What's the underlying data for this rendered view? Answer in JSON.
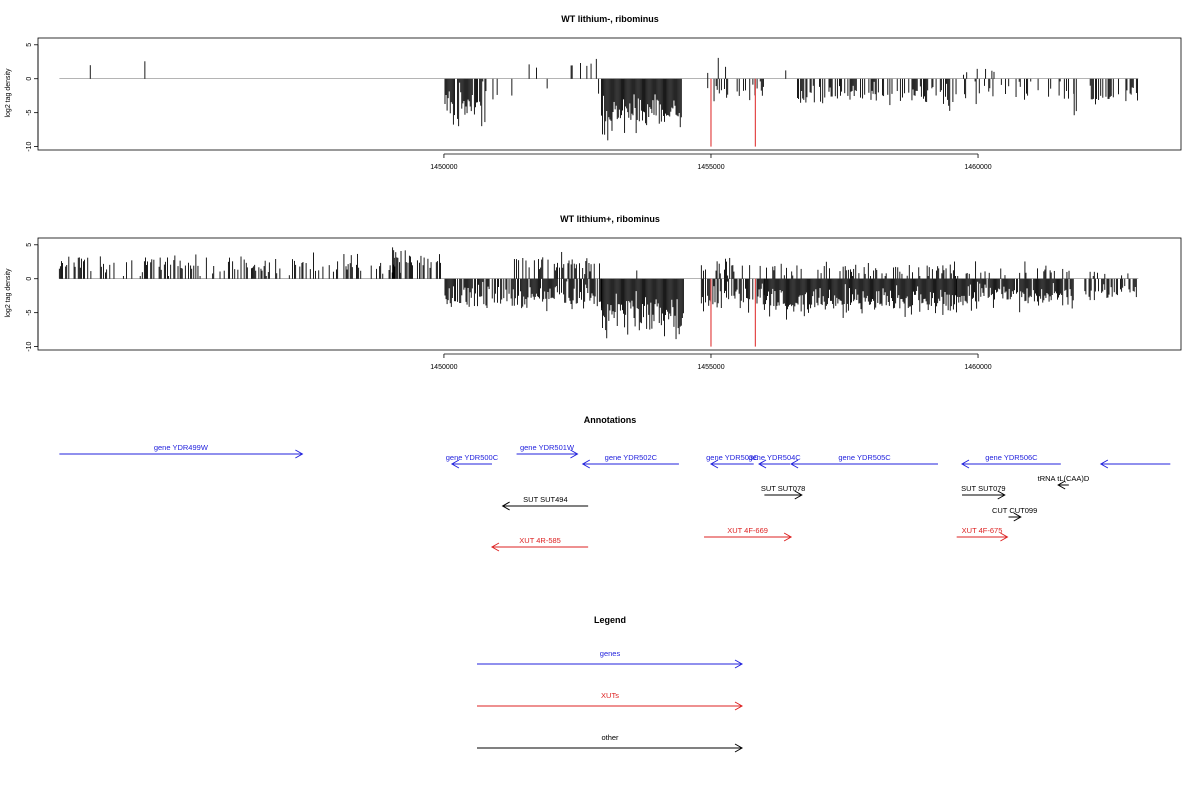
{
  "chart_data": [
    {
      "type": "bar",
      "title": "WT lithium-, ribominus",
      "ylabel": "log2 tag density",
      "xlabel": "",
      "xlim": [
        1442400,
        1463800
      ],
      "ylim": [
        -10.5,
        6
      ],
      "x_ticks": [
        {
          "value": 1450000,
          "label": "1450000"
        },
        {
          "value": 1455000,
          "label": "1455000"
        },
        {
          "value": 1460000,
          "label": "1460000"
        }
      ],
      "y_ticks": [
        {
          "value": -10,
          "label": "-10"
        },
        {
          "value": -5,
          "label": "-5"
        },
        {
          "value": 0,
          "label": "0"
        },
        {
          "value": 5,
          "label": "5"
        }
      ],
      "baseline": {
        "from": 1442800,
        "to": 1463000
      },
      "seed": 7,
      "regions": [
        {
          "from": 1443300,
          "to": 1444800,
          "sign": 1,
          "mean": 2.4,
          "spread": 1.1,
          "density": 0.05
        },
        {
          "from": 1450020,
          "to": 1450800,
          "sign": -1,
          "mean": 3.8,
          "spread": 2.2,
          "density": 0.9
        },
        {
          "from": 1450800,
          "to": 1451300,
          "sign": -1,
          "mean": 2.0,
          "spread": 1.0,
          "density": 0.25
        },
        {
          "from": 1451300,
          "to": 1452900,
          "sign": 1,
          "mean": 1.9,
          "spread": 0.9,
          "density": 0.06
        },
        {
          "from": 1451500,
          "to": 1452900,
          "sign": -1,
          "mean": 1.5,
          "spread": 0.6,
          "density": 0.04
        },
        {
          "from": 1452950,
          "to": 1454450,
          "sign": -1,
          "mean": 5.2,
          "spread": 1.8,
          "density": 1.0
        },
        {
          "from": 1454900,
          "to": 1455700,
          "sign": 1,
          "mean": 1.7,
          "spread": 1.0,
          "density": 0.12
        },
        {
          "from": 1454900,
          "to": 1456000,
          "sign": -1,
          "mean": 2.2,
          "spread": 1.1,
          "density": 0.35
        },
        {
          "from": 1456400,
          "to": 1456700,
          "sign": 1,
          "mean": 1.0,
          "spread": 0.5,
          "density": 0.06
        },
        {
          "from": 1456600,
          "to": 1459650,
          "sign": -1,
          "mean": 2.5,
          "spread": 1.1,
          "density": 0.55
        },
        {
          "from": 1459650,
          "to": 1460350,
          "sign": 1,
          "mean": 1.5,
          "spread": 0.8,
          "density": 0.12
        },
        {
          "from": 1459650,
          "to": 1461800,
          "sign": -1,
          "mean": 1.9,
          "spread": 1.0,
          "density": 0.25
        },
        {
          "from": 1461800,
          "to": 1461900,
          "sign": -1,
          "mean": 5.5,
          "spread": 0.8,
          "density": 0.3
        },
        {
          "from": 1462100,
          "to": 1463000,
          "sign": -1,
          "mean": 2.5,
          "spread": 1.0,
          "density": 0.5
        }
      ],
      "highlights": [
        {
          "x": 1455000,
          "value": -10,
          "color": "#dd2222"
        },
        {
          "x": 1455830,
          "value": -10,
          "color": "#dd2222"
        }
      ]
    },
    {
      "type": "bar",
      "title": "WT lithium+, ribominus",
      "ylabel": "log2 tag density",
      "xlabel": "",
      "xlim": [
        1442400,
        1463800
      ],
      "ylim": [
        -10.5,
        6
      ],
      "x_ticks": [
        {
          "value": 1450000,
          "label": "1450000"
        },
        {
          "value": 1455000,
          "label": "1455000"
        },
        {
          "value": 1460000,
          "label": "1460000"
        }
      ],
      "y_ticks": [
        {
          "value": -10,
          "label": "-10"
        },
        {
          "value": -5,
          "label": "-5"
        },
        {
          "value": 0,
          "label": "0"
        },
        {
          "value": 5,
          "label": "5"
        }
      ],
      "baseline": {
        "from": 1442800,
        "to": 1463000
      },
      "seed": 19,
      "regions": [
        {
          "from": 1442800,
          "to": 1450000,
          "sign": 1,
          "mean": 2.0,
          "spread": 1.1,
          "density": 0.35
        },
        {
          "from": 1449000,
          "to": 1449700,
          "sign": 1,
          "mean": 3.3,
          "spread": 1.2,
          "density": 0.35
        },
        {
          "from": 1450020,
          "to": 1452950,
          "sign": -1,
          "mean": 2.6,
          "spread": 1.3,
          "density": 0.8
        },
        {
          "from": 1451300,
          "to": 1452950,
          "sign": 1,
          "mean": 2.0,
          "spread": 1.0,
          "density": 0.4
        },
        {
          "from": 1452950,
          "to": 1454500,
          "sign": -1,
          "mean": 5.5,
          "spread": 1.9,
          "density": 1.0
        },
        {
          "from": 1453100,
          "to": 1454500,
          "sign": 1,
          "mean": 0.9,
          "spread": 0.5,
          "density": 0.06
        },
        {
          "from": 1454800,
          "to": 1456000,
          "sign": 1,
          "mean": 1.8,
          "spread": 0.9,
          "density": 0.45
        },
        {
          "from": 1454800,
          "to": 1456000,
          "sign": -1,
          "mean": 2.6,
          "spread": 1.2,
          "density": 0.7
        },
        {
          "from": 1456000,
          "to": 1459600,
          "sign": -1,
          "mean": 3.4,
          "spread": 1.3,
          "density": 1.0
        },
        {
          "from": 1456000,
          "to": 1459600,
          "sign": 1,
          "mean": 1.4,
          "spread": 0.7,
          "density": 0.35
        },
        {
          "from": 1459600,
          "to": 1461800,
          "sign": -1,
          "mean": 2.6,
          "spread": 1.2,
          "density": 0.9
        },
        {
          "from": 1459600,
          "to": 1461800,
          "sign": 1,
          "mean": 1.3,
          "spread": 0.7,
          "density": 0.25
        },
        {
          "from": 1462000,
          "to": 1463000,
          "sign": -1,
          "mean": 2.0,
          "spread": 0.8,
          "density": 0.6
        },
        {
          "from": 1462000,
          "to": 1463000,
          "sign": 1,
          "mean": 0.8,
          "spread": 0.4,
          "density": 0.15
        }
      ],
      "highlights": [
        {
          "x": 1455000,
          "value": -10,
          "color": "#dd2222"
        },
        {
          "x": 1455830,
          "value": -10,
          "color": "#dd2222"
        }
      ]
    }
  ],
  "annotations": {
    "title": "Annotations",
    "features": [
      {
        "label": "gene YDR499W",
        "category": "genes",
        "start": 1442800,
        "end": 1447350,
        "dir": "right",
        "row": 0
      },
      {
        "label": "gene YDR500C",
        "category": "genes",
        "start": 1450900,
        "end": 1450150,
        "dir": "left",
        "row": 1
      },
      {
        "label": "gene YDR501W",
        "category": "genes",
        "start": 1451360,
        "end": 1452500,
        "dir": "right",
        "row": 0
      },
      {
        "label": "gene YDR502C",
        "category": "genes",
        "start": 1454400,
        "end": 1452600,
        "dir": "left",
        "row": 1
      },
      {
        "label": "gene YDR503C",
        "category": "genes",
        "start": 1455800,
        "end": 1455000,
        "dir": "left",
        "row": 1
      },
      {
        "label": "gene YDR504C",
        "category": "genes",
        "start": 1456480,
        "end": 1455900,
        "dir": "left",
        "row": 1
      },
      {
        "label": "gene YDR505C",
        "category": "genes",
        "start": 1459250,
        "end": 1456500,
        "dir": "left",
        "row": 1
      },
      {
        "label": "gene YDR506C",
        "category": "genes",
        "start": 1461550,
        "end": 1459700,
        "dir": "left",
        "row": 1
      },
      {
        "label": "",
        "category": "genes",
        "start": 1463600,
        "end": 1462300,
        "dir": "left",
        "row": 1
      },
      {
        "label": "SUT SUT494",
        "category": "other",
        "start": 1452700,
        "end": 1451100,
        "dir": "left",
        "row": 2
      },
      {
        "label": "SUT SUT078",
        "category": "other",
        "start": 1456000,
        "end": 1456700,
        "dir": "right",
        "row": 3
      },
      {
        "label": "SUT SUT079",
        "category": "other",
        "start": 1459700,
        "end": 1460500,
        "dir": "right",
        "row": 3
      },
      {
        "label": "tRNA tL(CAA)D",
        "category": "other",
        "start": 1461700,
        "end": 1461500,
        "dir": "left",
        "row": 4
      },
      {
        "label": "CUT CUT099",
        "category": "other",
        "start": 1460570,
        "end": 1460800,
        "dir": "right",
        "row": 5
      },
      {
        "label": "XUT 4R-585",
        "category": "XUTs",
        "start": 1452700,
        "end": 1450900,
        "dir": "left",
        "row": 6
      },
      {
        "label": "XUT 4F-669",
        "category": "XUTs",
        "start": 1454870,
        "end": 1456500,
        "dir": "right",
        "row": 7
      },
      {
        "label": "XUT 4F-675",
        "category": "XUTs",
        "start": 1459600,
        "end": 1460550,
        "dir": "right",
        "row": 7
      }
    ]
  },
  "legend": {
    "title": "Legend",
    "items": [
      {
        "label": "genes",
        "color": "#2222dd"
      },
      {
        "label": "XUTs",
        "color": "#dd2222"
      },
      {
        "label": "other",
        "color": "#000000"
      }
    ]
  },
  "colors": {
    "genes": "#2222dd",
    "XUTs": "#dd2222",
    "other": "#000000",
    "bars": "#000000"
  }
}
